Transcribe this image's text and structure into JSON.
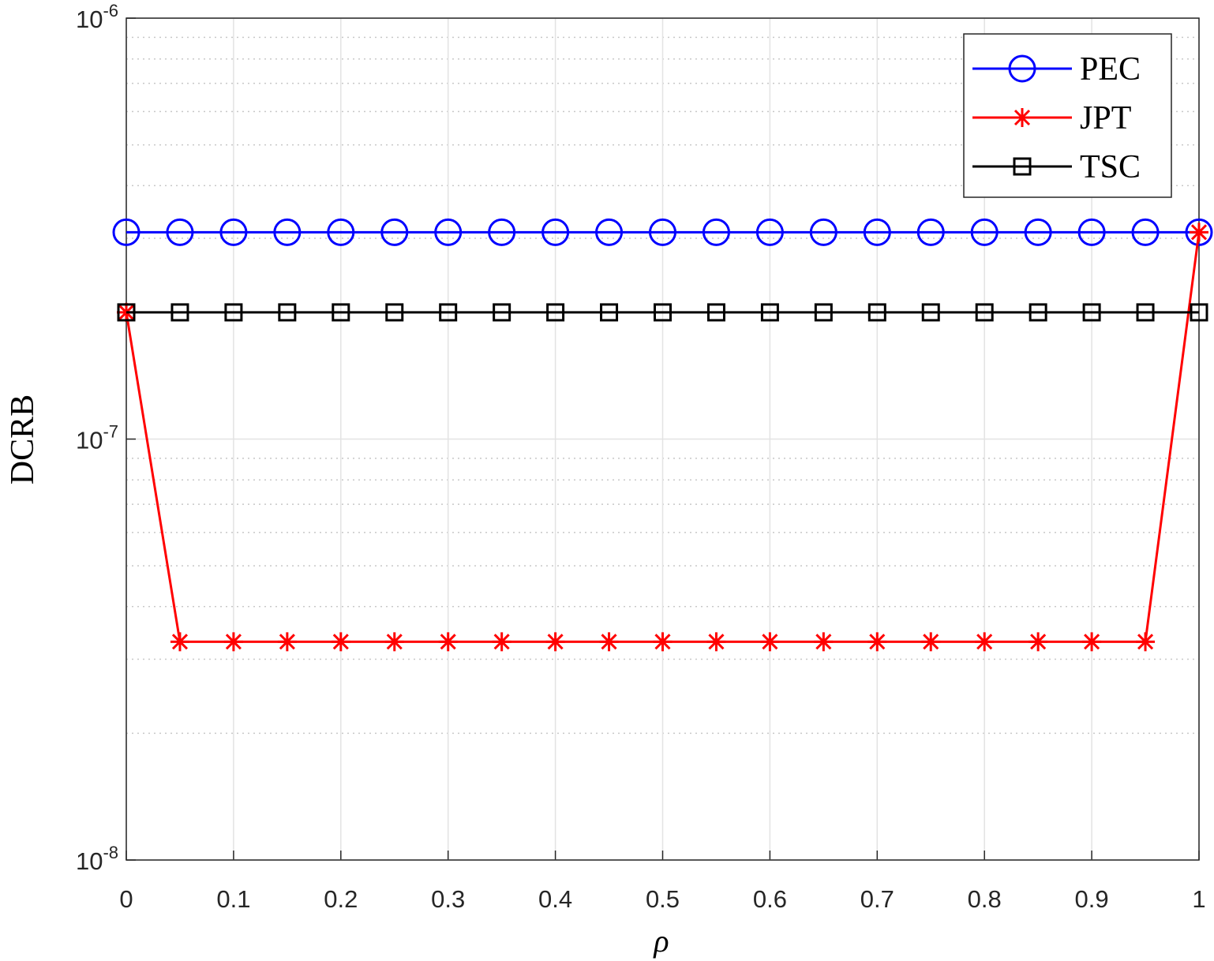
{
  "chart_data": {
    "type": "line",
    "x_label": "ρ",
    "y_label": "DCRB",
    "x": [
      0,
      0.05,
      0.1,
      0.15,
      0.2,
      0.25,
      0.3,
      0.35,
      0.4,
      0.45,
      0.5,
      0.55,
      0.6,
      0.65,
      0.7,
      0.75,
      0.8,
      0.85,
      0.9,
      0.95,
      1
    ],
    "series": [
      {
        "name": "PEC",
        "color": "#0000ff",
        "marker": "circle",
        "values": [
          3.1e-07,
          3.1e-07,
          3.1e-07,
          3.1e-07,
          3.1e-07,
          3.1e-07,
          3.1e-07,
          3.1e-07,
          3.1e-07,
          3.1e-07,
          3.1e-07,
          3.1e-07,
          3.1e-07,
          3.1e-07,
          3.1e-07,
          3.1e-07,
          3.1e-07,
          3.1e-07,
          3.1e-07,
          3.1e-07,
          3.1e-07
        ]
      },
      {
        "name": "JPT",
        "color": "#ff0000",
        "marker": "asterisk",
        "values": [
          2e-07,
          3.3e-08,
          3.3e-08,
          3.3e-08,
          3.3e-08,
          3.3e-08,
          3.3e-08,
          3.3e-08,
          3.3e-08,
          3.3e-08,
          3.3e-08,
          3.3e-08,
          3.3e-08,
          3.3e-08,
          3.3e-08,
          3.3e-08,
          3.3e-08,
          3.3e-08,
          3.3e-08,
          3.3e-08,
          3.1e-07
        ]
      },
      {
        "name": "TSC",
        "color": "#000000",
        "marker": "square",
        "values": [
          2e-07,
          2e-07,
          2e-07,
          2e-07,
          2e-07,
          2e-07,
          2e-07,
          2e-07,
          2e-07,
          2e-07,
          2e-07,
          2e-07,
          2e-07,
          2e-07,
          2e-07,
          2e-07,
          2e-07,
          2e-07,
          2e-07,
          2e-07,
          2e-07
        ]
      }
    ],
    "xlim": [
      0,
      1
    ],
    "xticks": [
      0,
      0.1,
      0.2,
      0.3,
      0.4,
      0.5,
      0.6,
      0.7,
      0.8,
      0.9,
      1
    ],
    "ylim": [
      1e-08,
      1e-06
    ],
    "yticks": [
      {
        "value": 1e-08,
        "label": "10^-8"
      },
      {
        "value": 1e-07,
        "label": "10^-7"
      },
      {
        "value": 1e-06,
        "label": "10^-6"
      }
    ],
    "y_scale": "log",
    "grid": true,
    "minor_grid": true,
    "legend_position": "upper-right"
  }
}
